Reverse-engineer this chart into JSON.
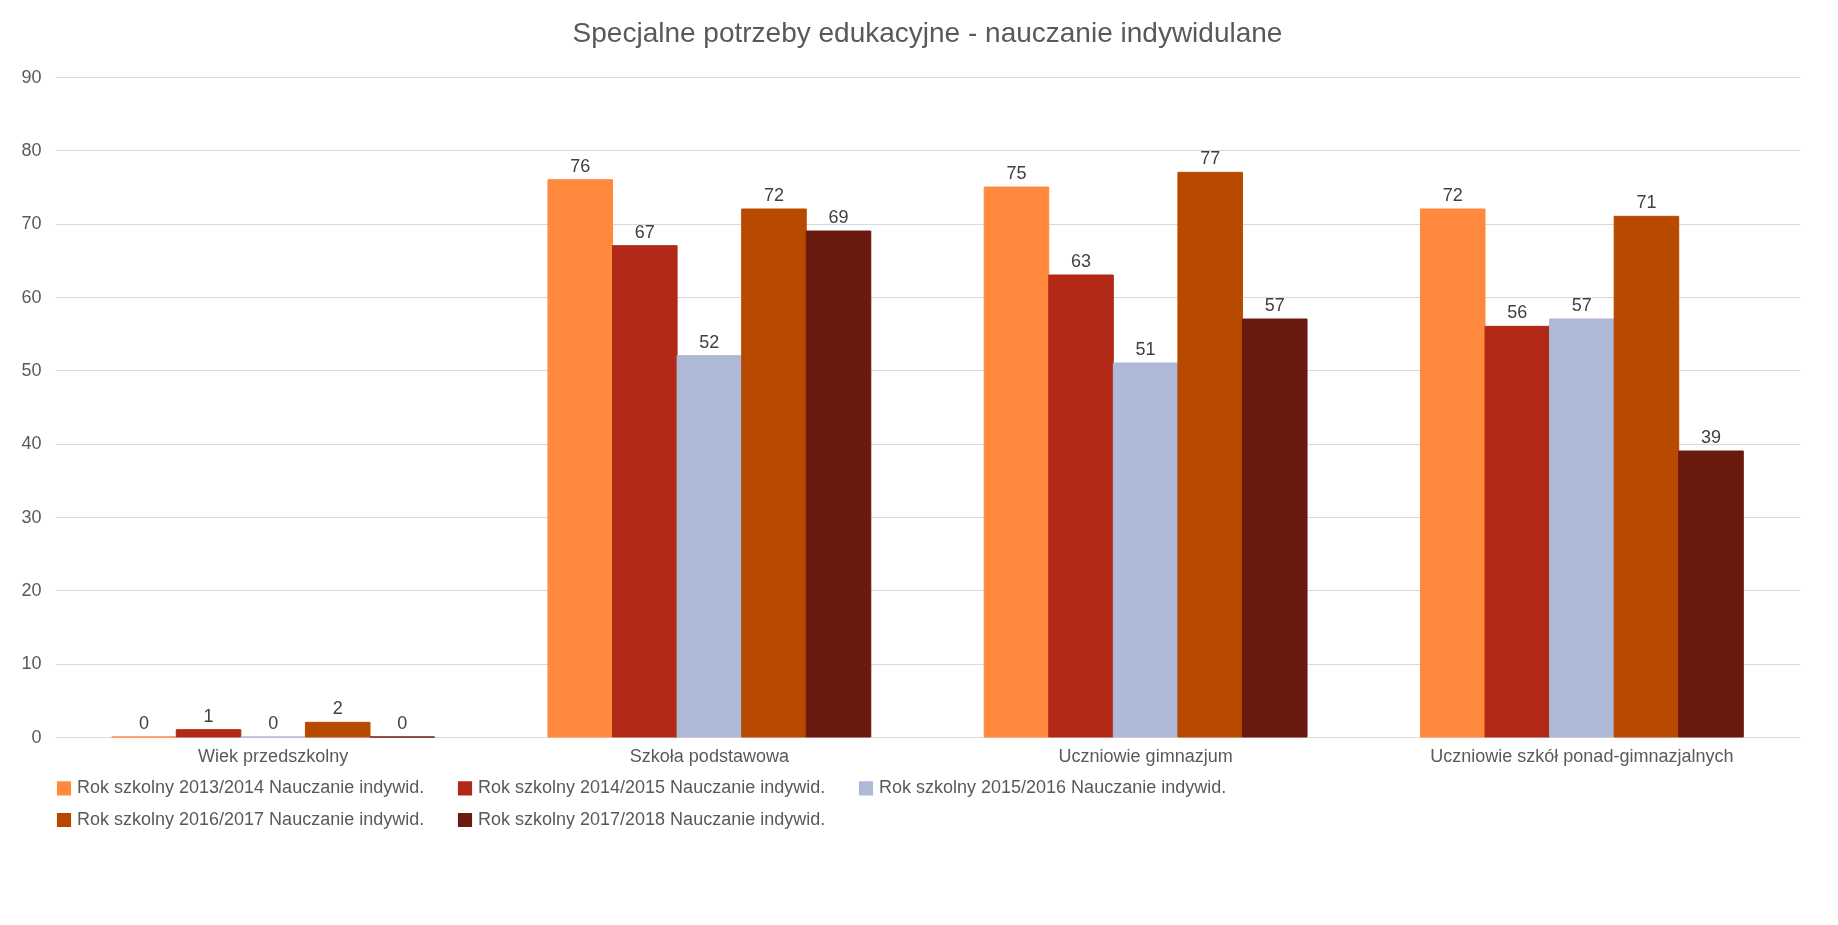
{
  "chart_data": {
    "type": "bar",
    "title": "Specjalne potrzeby edukacyjne - nauczanie indywidulane",
    "categories": [
      "Wiek przedszkolny",
      "Szkoła podstawowa",
      "Uczniowie gimnazjum",
      "Uczniowie szkół ponad-gimnazjalnych"
    ],
    "series": [
      {
        "name": "Rok szkolny 2013/2014 Nauczanie indywid.",
        "color": "#ff8a3d",
        "values": [
          0,
          76,
          75,
          72
        ]
      },
      {
        "name": "Rok szkolny 2014/2015 Nauczanie indywid.",
        "color": "#b22a17",
        "values": [
          1,
          67,
          63,
          56
        ]
      },
      {
        "name": "Rok szkolny 2015/2016 Nauczanie indywid.",
        "color": "#adb9d6",
        "values": [
          0,
          52,
          51,
          57
        ]
      },
      {
        "name": "Rok szkolny 2016/2017 Nauczanie indywid.",
        "color": "#b84a00",
        "values": [
          2,
          72,
          77,
          71
        ]
      },
      {
        "name": "Rok szkolny 2017/2018 Nauczanie indywid.",
        "color": "#6b1a0f",
        "values": [
          0,
          69,
          57,
          39
        ]
      }
    ],
    "ylim": [
      0,
      90
    ],
    "yticks": [
      0,
      10,
      20,
      30,
      40,
      50,
      60,
      70,
      80,
      90
    ],
    "grid": "y",
    "legend": "bottom",
    "data_labels": true
  }
}
